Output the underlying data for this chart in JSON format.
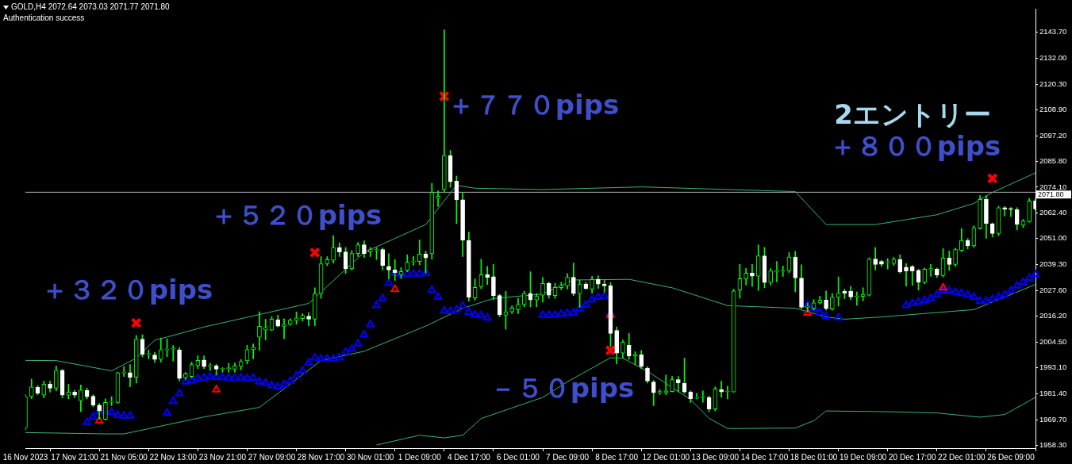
{
  "chart_data": {
    "type": "candlestick",
    "title": "GOLD,H4 2072.64 2073.03 2071.77 2071.80",
    "subtitle": "Authentication success",
    "annotations": [
      "＋３２０pips",
      "＋５２０pips",
      "＋７７０pips",
      "2エントリー",
      "＋８００pips",
      "－５０pips"
    ],
    "categories": [
      "16 Nov 2023",
      null,
      null,
      null,
      null,
      null,
      null,
      null,
      "17 Nov 21:00",
      null,
      null,
      null,
      null,
      null,
      null,
      null,
      "21 Nov 05:00",
      null,
      null,
      null,
      null,
      null,
      null,
      null,
      "22 Nov 13:00",
      null,
      null,
      null,
      null,
      null,
      null,
      null,
      "23 Nov 21:00",
      null,
      null,
      null,
      null,
      null,
      null,
      null,
      "27 Nov 09:00",
      null,
      null,
      null,
      null,
      null,
      null,
      null,
      "28 Nov 17:00",
      null,
      null,
      null,
      null,
      null,
      null,
      null,
      "30 Nov 01:00",
      null,
      null,
      null,
      null,
      null,
      null,
      null,
      "1 Dec 09:00",
      null,
      null,
      null,
      null,
      null,
      null,
      null,
      "4 Dec 17:00",
      null,
      null,
      null,
      null,
      null,
      null,
      null,
      "6 Dec 01:00",
      null,
      null,
      null,
      null,
      null,
      null,
      null,
      "7 Dec 09:00",
      null,
      null,
      null,
      null,
      null,
      null,
      null,
      "8 Dec 17:00",
      null,
      null,
      null,
      null,
      null,
      null,
      null,
      "12 Dec 01:00",
      null,
      null,
      null,
      null,
      null,
      null,
      null,
      "13 Dec 09:00",
      null,
      null,
      null,
      null,
      null,
      null,
      null,
      "14 Dec 17:00",
      null,
      null,
      null,
      null,
      null,
      null,
      null,
      "18 Dec 01:00",
      null,
      null,
      null,
      null,
      null,
      null,
      null,
      "19 Dec 09:00",
      null,
      null,
      null,
      null,
      null,
      null,
      null,
      "20 Dec 17:00",
      null,
      null,
      null,
      null,
      null,
      null,
      null,
      "22 Dec 01:00",
      null,
      null,
      null,
      null,
      null,
      null,
      null,
      "26 Dec 09:00",
      null,
      null,
      null,
      null
    ],
    "ohlc": [
      [
        1966,
        1981,
        1965,
        1980
      ],
      [
        1980.1,
        1987.9,
        1979.1,
        1984.4
      ],
      [
        1984.2,
        1985,
        1980.9,
        1981.5
      ],
      [
        1980.7,
        1987,
        1979.5,
        1985.6
      ],
      [
        1985.6,
        1987,
        1982,
        1983.8
      ],
      [
        1983.8,
        1993.8,
        1982.6,
        1991.9
      ],
      [
        1991.9,
        1992.2,
        1979.5,
        1980.7
      ],
      [
        1980.7,
        1985.6,
        1979.1,
        1982.1
      ],
      [
        1982.1,
        1983,
        1979.5,
        1980.7
      ],
      [
        1978.2,
        1985.3,
        1973.3,
        1983
      ],
      [
        1982.8,
        1983.9,
        1979,
        1980
      ],
      [
        1980.2,
        1980.9,
        1975.6,
        1976.2
      ],
      [
        1976.2,
        1977,
        1969.8,
        1973.6
      ],
      [
        1969.8,
        1979,
        1969.5,
        1977.4
      ],
      [
        1977.5,
        1980,
        1976,
        1977.8
      ],
      [
        1977.4,
        1991,
        1977,
        1990.8
      ],
      [
        1990.7,
        1993.5,
        1989,
        1991
      ],
      [
        1990.8,
        1994.4,
        1984.4,
        1988.7
      ],
      [
        1988.7,
        2007.5,
        1986.1,
        2005.8
      ],
      [
        2005.8,
        2007.8,
        1997.9,
        1999
      ],
      [
        1999,
        2001,
        1997,
        1999.3
      ],
      [
        1998.7,
        2000,
        1995.4,
        1996.7
      ],
      [
        1996.7,
        2006.4,
        1995.5,
        2001.1
      ],
      [
        2001,
        2006,
        1998,
        2001.4
      ],
      [
        2001.5,
        2003,
        1996,
        2001.8
      ],
      [
        2001,
        2002,
        1987,
        1988.2
      ],
      [
        1988.5,
        1990.9,
        1987.8,
        1990.3
      ],
      [
        1989.1,
        1995.5,
        1988.5,
        1994.4
      ],
      [
        1994,
        1998.4,
        1992.6,
        1996.3
      ],
      [
        1996.5,
        1998.4,
        1992.6,
        1993.5
      ],
      [
        1993.6,
        1995,
        1991.7,
        1993.9
      ],
      [
        1993.8,
        1994.5,
        1989.7,
        1992.4
      ],
      [
        1992.4,
        1993,
        1991,
        1992.6
      ],
      [
        1992.6,
        1995,
        1991,
        1993
      ],
      [
        1992.4,
        1995.2,
        1991,
        1993.8
      ],
      [
        1993.6,
        1996.7,
        1992,
        1995.8
      ],
      [
        1996.1,
        2003.1,
        1994.7,
        2001.1
      ],
      [
        2001.1,
        2003.7,
        1997,
        2002.2
      ],
      [
        2006.7,
        2018.1,
        2000.8,
        2011.6
      ],
      [
        2009.9,
        2014.8,
        2005.5,
        2011.1
      ],
      [
        2009.9,
        2016,
        2009.6,
        2014.8
      ],
      [
        2014.6,
        2016.6,
        2011.3,
        2011.7
      ],
      [
        2011.6,
        2015,
        2006,
        2012.5
      ],
      [
        2012.5,
        2015,
        2012,
        2014.4
      ],
      [
        2014.2,
        2018.1,
        2012.5,
        2015.4
      ],
      [
        2015.1,
        2017.3,
        2013.9,
        2016.5
      ],
      [
        2016.2,
        2017.8,
        2011.9,
        2014.8
      ],
      [
        2014.8,
        2028.9,
        2011.9,
        2026.3
      ],
      [
        2026.3,
        2042.9,
        2024.2,
        2039.7
      ],
      [
        2039.7,
        2042.9,
        2038.8,
        2041.5
      ],
      [
        2041.2,
        2052.3,
        2040,
        2047
      ],
      [
        2047,
        2049,
        2042.9,
        2045
      ],
      [
        2045,
        2047,
        2035.3,
        2037.4
      ],
      [
        2037.4,
        2045.6,
        2036.8,
        2044.3
      ],
      [
        2044.3,
        2049.3,
        2042.9,
        2048.2
      ],
      [
        2048.2,
        2050,
        2042.5,
        2044.3
      ],
      [
        2045,
        2047,
        2042.9,
        2046.1
      ],
      [
        2045.8,
        2046.9,
        2041.6,
        2046.2
      ],
      [
        2046.1,
        2046.8,
        2036.9,
        2038.9
      ],
      [
        2038.5,
        2044.2,
        2032.9,
        2036.9
      ],
      [
        2036.9,
        2041.6,
        2032.2,
        2035.7
      ],
      [
        2034.8,
        2038,
        2033,
        2036.2
      ],
      [
        2036.7,
        2043.7,
        2036.1,
        2040.4
      ],
      [
        2040.5,
        2043,
        2039,
        2040.9
      ],
      [
        2040.7,
        2050.4,
        2039.2,
        2044
      ],
      [
        2044,
        2045.4,
        2035.4,
        2042.3
      ],
      [
        2044.2,
        2075.8,
        2041.7,
        2071.7
      ],
      [
        2069,
        2072.4,
        2065.4,
        2070
      ],
      [
        2073,
        2144.7,
        2071.7,
        2088.3
      ],
      [
        2088.3,
        2090.6,
        2074,
        2076.5
      ],
      [
        2076.8,
        2079.1,
        2057.7,
        2068.4
      ],
      [
        2068.4,
        2071.7,
        2042.9,
        2050.2
      ],
      [
        2050.2,
        2053.9,
        2022.9,
        2024.7
      ],
      [
        2024.3,
        2032.9,
        2023.4,
        2029.1
      ],
      [
        2029.4,
        2041.7,
        2028.5,
        2034.8
      ],
      [
        2034.8,
        2038.5,
        2030.4,
        2033.5
      ],
      [
        2033.9,
        2039.4,
        2023.4,
        2025.4
      ],
      [
        2025.4,
        2026,
        2015.9,
        2016.8
      ],
      [
        2016.6,
        2027.3,
        2010.3,
        2018.1
      ],
      [
        2018.1,
        2020.8,
        2017.3,
        2019.8
      ],
      [
        2019.1,
        2024.2,
        2017.3,
        2021.4
      ],
      [
        2021.4,
        2027.3,
        2020.3,
        2026.4
      ],
      [
        2026.4,
        2036.1,
        2020.3,
        2023.4
      ],
      [
        2023.4,
        2026.4,
        2020.3,
        2025.1
      ],
      [
        2025.6,
        2033.6,
        2022.5,
        2030.9
      ],
      [
        2030.9,
        2031.4,
        2024.2,
        2025.6
      ],
      [
        2025.4,
        2031,
        2024.2,
        2029.1
      ],
      [
        2029,
        2031.4,
        2028,
        2030
      ],
      [
        2029.8,
        2035.3,
        2028.3,
        2033.6
      ],
      [
        2033.6,
        2040,
        2025.4,
        2026.3
      ],
      [
        2026.3,
        2032.4,
        2020.1,
        2030.6
      ],
      [
        2030.6,
        2031.5,
        2028.2,
        2028.6
      ],
      [
        2028.3,
        2034.1,
        2026.5,
        2032.6
      ],
      [
        2032.6,
        2034.3,
        2028.6,
        2030.6
      ],
      [
        2030.6,
        2032.4,
        2026.9,
        2029.8
      ],
      [
        2029.8,
        2031.2,
        2002.5,
        2008.4
      ],
      [
        2009.8,
        2011.3,
        1994.7,
        1999.6
      ],
      [
        1999.6,
        2005.4,
        1997.3,
        2004.5
      ],
      [
        2003.1,
        2008.4,
        1996.7,
        1998.2
      ],
      [
        1998.2,
        2000.2,
        1994.4,
        1999
      ],
      [
        1998.9,
        2000.8,
        1992.6,
        1993.5
      ],
      [
        1992.8,
        1993.5,
        1986.1,
        1987
      ],
      [
        1986.6,
        1987.3,
        1976,
        1981.8
      ],
      [
        1981.8,
        1983.2,
        1981,
        1982.3
      ],
      [
        1981.8,
        1989.7,
        1980.9,
        1982.6
      ],
      [
        1982.3,
        1989.1,
        1982.1,
        1987.7
      ],
      [
        1987.7,
        1989.1,
        1982.1,
        1986.1
      ],
      [
        1986.1,
        1997.3,
        1981.5,
        1982.1
      ],
      [
        1982.1,
        1982.6,
        1977.4,
        1979.1
      ],
      [
        1979.3,
        1981.5,
        1979,
        1979.6
      ],
      [
        1979.6,
        1982.6,
        1977.5,
        1979.8
      ],
      [
        1979.7,
        1980.3,
        1973.3,
        1974.5
      ],
      [
        1974.5,
        1984.4,
        1973.6,
        1983.5
      ],
      [
        1983.2,
        1987,
        1979.7,
        1982.1
      ],
      [
        1982.2,
        1984.7,
        1979,
        1982.5
      ],
      [
        1982.1,
        2028.3,
        1982,
        2027.5
      ],
      [
        2027.9,
        2039.4,
        2024.2,
        2033
      ],
      [
        2033,
        2037.7,
        2030.1,
        2035.5
      ],
      [
        2035.5,
        2039.4,
        2029.5,
        2034.1
      ],
      [
        2034.1,
        2048.2,
        2027.7,
        2043.2
      ],
      [
        2043.2,
        2047,
        2028.9,
        2031.3
      ],
      [
        2031.3,
        2037.6,
        2030.1,
        2036.5
      ],
      [
        2036.2,
        2040.7,
        2031.5,
        2036.5
      ],
      [
        2036.4,
        2038.7,
        2034,
        2036.7
      ],
      [
        2036.5,
        2044.7,
        2035.7,
        2042.7
      ],
      [
        2042.7,
        2045.3,
        2027.1,
        2033.3
      ],
      [
        2033.3,
        2039.2,
        2019.5,
        2020.1
      ],
      [
        2020.1,
        2022,
        2018,
        2020.7
      ],
      [
        2019.7,
        2023.6,
        2018.9,
        2022.1
      ],
      [
        2022.1,
        2025.1,
        2021.6,
        2023.4
      ],
      [
        2023.4,
        2027.5,
        2018.9,
        2019.5
      ],
      [
        2019.3,
        2026.3,
        2018.9,
        2024.6
      ],
      [
        2024.6,
        2033.8,
        2020.7,
        2026.5
      ],
      [
        2027.4,
        2028.3,
        2024,
        2026.5
      ],
      [
        2027.4,
        2029.5,
        2023.4,
        2024.8
      ],
      [
        2024.8,
        2027,
        2021,
        2025.1
      ],
      [
        2025,
        2028.9,
        2023,
        2026
      ],
      [
        2025.6,
        2042.3,
        2025.2,
        2041.8
      ],
      [
        2041.8,
        2047,
        2036.9,
        2039.4
      ],
      [
        2040.7,
        2041.3,
        2038.5,
        2039.5
      ],
      [
        2040.3,
        2042,
        2037.3,
        2040.6
      ],
      [
        2039.8,
        2042.6,
        2038.9,
        2041.7
      ],
      [
        2041.5,
        2043.7,
        2035.4,
        2036.1
      ],
      [
        2038.2,
        2039.8,
        2029.7,
        2036.4
      ],
      [
        2038.4,
        2039,
        2030,
        2036.4
      ],
      [
        2036.7,
        2037.3,
        2027.9,
        2031.4
      ],
      [
        2031.4,
        2037.8,
        2030.7,
        2037.3
      ],
      [
        2037,
        2039.5,
        2034,
        2037.5
      ],
      [
        2037.3,
        2037.8,
        2033.5,
        2034.7
      ],
      [
        2034.4,
        2046.5,
        2033.8,
        2042.3
      ],
      [
        2042.3,
        2045.4,
        2036.7,
        2039.4
      ],
      [
        2039.4,
        2046.7,
        2038.5,
        2046.1
      ],
      [
        2045.7,
        2055.5,
        2045.2,
        2050.2
      ],
      [
        2050.2,
        2051,
        2046.3,
        2047.7
      ],
      [
        2047.7,
        2056.7,
        2047,
        2055.7
      ],
      [
        2055.7,
        2070.3,
        2055.2,
        2068.6
      ],
      [
        2068.6,
        2070.3,
        2051.1,
        2057.7
      ],
      [
        2057.7,
        2058,
        2051.7,
        2053.3
      ],
      [
        2053.3,
        2065.5,
        2052.3,
        2064.9
      ],
      [
        2064.9,
        2065.4,
        2061.1,
        2064.2
      ],
      [
        2064.5,
        2065,
        2060.8,
        2064
      ],
      [
        2064,
        2064.9,
        2054.9,
        2057.4
      ],
      [
        2057,
        2059.6,
        2055.9,
        2058.9
      ],
      [
        2058.6,
        2069,
        2058.3,
        2067.9
      ],
      [
        2067.9,
        2069.2,
        2063.6,
        2064.3
      ]
    ],
    "series": [
      {
        "type": "line",
        "color": "#3cb371",
        "values": [
          1996.3,
          null,
          null,
          null,
          null,
          1996.2,
          null,
          null,
          null,
          null,
          null,
          null,
          null,
          null,
          1991.6,
          null,
          null,
          null,
          1997.3,
          null,
          null,
          2005.4,
          null,
          2006.8,
          null,
          null,
          null,
          null,
          null,
          2011.3,
          null,
          null,
          null,
          null,
          null,
          null,
          null,
          null,
          2016.9,
          null,
          null,
          null,
          null,
          null,
          null,
          null,
          2021.9,
          null,
          null,
          null,
          null,
          null,
          null,
          null,
          null,
          2044.8,
          null,
          null,
          null,
          null,
          null,
          null,
          null,
          null,
          null,
          2057.3,
          null,
          null,
          2068,
          null,
          2074.9,
          null,
          null,
          2073.6,
          null,
          null,
          null,
          null,
          null,
          null,
          null,
          null,
          null,
          null,
          2073,
          null,
          null,
          null,
          null,
          null,
          null,
          null,
          null,
          null,
          null,
          null,
          null,
          null,
          null,
          null,
          2074.2,
          null,
          null,
          null,
          null,
          null,
          null,
          null,
          null,
          null,
          null,
          null,
          null,
          null,
          null,
          null,
          null,
          null,
          null,
          null,
          null,
          null,
          null,
          null,
          null,
          2072.1,
          null,
          null,
          null,
          null,
          2057.3,
          null,
          null,
          null,
          null,
          null,
          null,
          null,
          2057.3,
          null,
          null,
          null,
          null,
          null,
          null,
          null,
          null,
          null,
          2061.7,
          null,
          null,
          null,
          null,
          null,
          2066.8,
          null,
          null,
          2071.7,
          null,
          null,
          null,
          null,
          null,
          null,
          2080.5
        ]
      },
      {
        "type": "line",
        "color": "#3cb371",
        "values": [
          1963.9,
          null,
          null,
          null,
          null,
          null,
          null,
          null,
          null,
          null,
          null,
          null,
          null,
          1963.3,
          null,
          null,
          1963.3,
          null,
          null,
          null,
          null,
          null,
          null,
          null,
          null,
          null,
          null,
          null,
          null,
          1970.9,
          null,
          null,
          null,
          null,
          null,
          null,
          null,
          null,
          1975.2,
          null,
          null,
          null,
          null,
          null,
          null,
          null,
          null,
          null,
          1996.2,
          null,
          null,
          null,
          null,
          null,
          null,
          2000.4,
          null,
          null,
          null,
          null,
          null,
          null,
          null,
          null,
          null,
          2011.7,
          null,
          null,
          null,
          null,
          null,
          2019.7,
          null,
          null,
          null,
          null,
          2024.1,
          null,
          null,
          null,
          null,
          null,
          null,
          null,
          2026.1,
          null,
          null,
          null,
          null,
          2032.4,
          null,
          null,
          null,
          null,
          null,
          null,
          null,
          null,
          2032.7,
          null,
          null,
          null,
          null,
          null,
          null,
          2028.9,
          null,
          null,
          null,
          null,
          null,
          2023.6,
          null,
          null,
          2020.9,
          null,
          null,
          null,
          null,
          null,
          null,
          null,
          null,
          null,
          null,
          2019.7,
          null,
          null,
          null,
          null,
          2015.8,
          null,
          null,
          2014.8,
          null,
          null,
          null,
          null,
          null,
          2015.8,
          null,
          null,
          null,
          null,
          null,
          null,
          null,
          null,
          null,
          null,
          null,
          null,
          null,
          null,
          2019.1,
          null,
          null,
          null,
          null,
          null,
          null,
          null,
          null,
          null,
          2030.4
        ]
      },
      {
        "type": "line",
        "color": "#3cb371",
        "values": [
          null,
          null,
          null,
          null,
          null,
          null,
          null,
          null,
          null,
          null,
          null,
          null,
          null,
          null,
          null,
          null,
          null,
          null,
          null,
          null,
          null,
          null,
          null,
          null,
          null,
          null,
          null,
          null,
          null,
          null,
          null,
          null,
          null,
          null,
          null,
          null,
          null,
          null,
          null,
          null,
          null,
          null,
          null,
          null,
          null,
          null,
          null,
          null,
          null,
          null,
          null,
          null,
          null,
          null,
          null,
          null,
          null,
          1958.3,
          null,
          null,
          null,
          null,
          null,
          null,
          1962.7,
          null,
          null,
          null,
          1961.5,
          null,
          null,
          1962.7,
          null,
          null,
          1970.2,
          null,
          null,
          null,
          null,
          null,
          null,
          null,
          null,
          null,
          1979.7,
          null,
          null,
          null,
          1986.7,
          null,
          null,
          null,
          null,
          null,
          null,
          1997.5,
          null,
          1997.3,
          null,
          null,
          null,
          1991.4,
          null,
          null,
          null,
          null,
          null,
          null,
          1978.7,
          null,
          null,
          1970.3,
          null,
          null,
          1965.7,
          null,
          null,
          null,
          null,
          null,
          null,
          null,
          null,
          null,
          null,
          1965.9,
          null,
          null,
          1969.2,
          null,
          1973.6,
          null,
          null,
          null,
          null,
          null,
          null,
          null,
          null,
          1973.3,
          null,
          null,
          null,
          null,
          null,
          null,
          null,
          null,
          1972.7,
          null,
          null,
          null,
          null,
          null,
          null,
          1970.8,
          null,
          null,
          null,
          1972,
          null,
          null,
          null,
          null,
          1979.7
        ]
      },
      {
        "type": "scatter",
        "color": "#0000ff",
        "marker": "triangle",
        "values": [
          null,
          null,
          null,
          null,
          null,
          null,
          null,
          null,
          null,
          null,
          1968.6,
          1970.9,
          1973.4,
          1973.4,
          1973,
          1971.7,
          1971.4,
          1971.4,
          null,
          null,
          null,
          null,
          null,
          1972.7,
          1978,
          1981.5,
          1986.7,
          1987.3,
          1988.2,
          1988.5,
          1989,
          1988.8,
          1988.6,
          1988.5,
          1988.3,
          1988.5,
          1988.2,
          1988.4,
          1986.7,
          1986.1,
          1985,
          1984.4,
          1985.5,
          1987,
          1989.4,
          1991.6,
          1995.3,
          1997.5,
          1997,
          1997,
          1997,
          1997.5,
          2000,
          2001.4,
          2003.8,
          2007.8,
          2012.5,
          2021,
          2024.1,
          2031,
          2035.4,
          2035.2,
          2035.2,
          2035.2,
          2035.2,
          2035.4,
          2027.9,
          2024.7,
          2018.5,
          2018.3,
          2019,
          2020.8,
          2018,
          2016.7,
          2016.5,
          2015.4,
          null,
          null,
          null,
          null,
          null,
          null,
          null,
          null,
          2016.6,
          2016.6,
          2016.6,
          2017.2,
          2017.4,
          2017.8,
          2019.5,
          2021.3,
          2023.6,
          2024.7,
          2025.2,
          2017.4,
          null,
          null,
          null,
          null,
          null,
          null,
          null,
          null,
          null,
          null,
          null,
          null,
          null,
          null,
          null,
          null,
          null,
          null,
          null,
          null,
          null,
          null,
          null,
          null,
          null,
          null,
          null,
          null,
          null,
          null,
          null,
          2021.3,
          2019.5,
          2017.8,
          2016.1,
          null,
          2015.5,
          null,
          null,
          null,
          null,
          null,
          null,
          null,
          null,
          null,
          null,
          2021,
          2021.9,
          2022.5,
          2023.2,
          2024.1,
          2025.7,
          2027.6,
          2027.6,
          2027,
          2026.4,
          2025.7,
          2024.7,
          2022.9,
          2022.9,
          2023.8,
          2024.7,
          2025.7,
          2027.6,
          2029.8,
          2031.4,
          2033.3,
          2034.9
        ]
      },
      {
        "type": "scatter",
        "color": "#ff0000",
        "marker": "triangle",
        "values": [
          null,
          null,
          null,
          null,
          null,
          null,
          null,
          null,
          null,
          null,
          null,
          null,
          1969.2,
          null,
          null,
          null,
          null,
          null,
          null,
          null,
          null,
          null,
          null,
          null,
          null,
          null,
          null,
          null,
          null,
          null,
          null,
          1983.2,
          null,
          null,
          null,
          null,
          null,
          null,
          null,
          null,
          null,
          null,
          null,
          null,
          null,
          null,
          null,
          null,
          null,
          null,
          null,
          null,
          null,
          null,
          null,
          null,
          null,
          null,
          null,
          null,
          2028.2,
          null,
          null,
          null,
          null,
          null,
          null,
          null,
          null,
          null,
          null,
          null,
          null,
          null,
          null,
          null,
          null,
          null,
          null,
          null,
          null,
          null,
          null,
          null,
          null,
          null,
          null,
          null,
          null,
          null,
          null,
          null,
          null,
          null,
          null,
          2016.6,
          null,
          null,
          null,
          null,
          null,
          null,
          null,
          null,
          null,
          null,
          null,
          null,
          null,
          null,
          null,
          null,
          null,
          null,
          null,
          null,
          null,
          null,
          null,
          null,
          null,
          null,
          null,
          null,
          null,
          null,
          null,
          2017.6,
          null,
          null,
          null,
          null,
          null,
          null,
          null,
          null,
          null,
          null,
          null,
          null,
          null,
          null,
          null,
          null,
          null,
          null,
          null,
          null,
          null,
          2028.9,
          null,
          null,
          null,
          null,
          null,
          null,
          null,
          null,
          null,
          null,
          null,
          null,
          null,
          null,
          null
        ]
      },
      {
        "type": "scatter",
        "color": "#ff0000",
        "marker": "cross",
        "values": [
          null,
          null,
          null,
          null,
          null,
          null,
          null,
          null,
          null,
          null,
          null,
          null,
          null,
          null,
          null,
          null,
          null,
          null,
          2013.1,
          null,
          null,
          null,
          null,
          null,
          null,
          null,
          null,
          null,
          null,
          null,
          null,
          null,
          null,
          null,
          null,
          null,
          null,
          null,
          null,
          null,
          null,
          null,
          null,
          null,
          null,
          null,
          null,
          2044.7,
          null,
          null,
          null,
          null,
          null,
          null,
          null,
          null,
          null,
          null,
          null,
          null,
          null,
          null,
          null,
          null,
          null,
          null,
          null,
          null,
          2114.9,
          null,
          null,
          null,
          null,
          null,
          null,
          null,
          null,
          null,
          null,
          null,
          null,
          null,
          null,
          null,
          null,
          null,
          null,
          null,
          null,
          null,
          null,
          null,
          null,
          null,
          null,
          null,
          null,
          null,
          null,
          null,
          null,
          null,
          null,
          null,
          null,
          null,
          null,
          null,
          null,
          null,
          null,
          null,
          null,
          null,
          null,
          null,
          null,
          null,
          null,
          null,
          null,
          null,
          null,
          null,
          null,
          null,
          null,
          null,
          null,
          null,
          null,
          null,
          null,
          null,
          null,
          null,
          null,
          null,
          null,
          null,
          null,
          null,
          null,
          null,
          null,
          null,
          null,
          null,
          null,
          null,
          null,
          null,
          null,
          null,
          null,
          null,
          null,
          2078,
          null,
          null,
          null,
          null,
          null,
          null,
          null
        ]
      },
      {
        "type": "scatter",
        "color": "#ff0000",
        "marker": "cross",
        "values": [
          null,
          null,
          null,
          null,
          null,
          null,
          null,
          null,
          null,
          null,
          null,
          null,
          null,
          null,
          null,
          null,
          null,
          null,
          null,
          null,
          null,
          null,
          null,
          null,
          null,
          null,
          null,
          null,
          null,
          null,
          null,
          null,
          null,
          null,
          null,
          null,
          null,
          null,
          null,
          null,
          null,
          null,
          null,
          null,
          null,
          null,
          null,
          null,
          null,
          null,
          null,
          null,
          null,
          null,
          null,
          null,
          null,
          null,
          null,
          null,
          null,
          null,
          null,
          null,
          null,
          null,
          null,
          null,
          null,
          null,
          null,
          null,
          null,
          null,
          null,
          null,
          null,
          null,
          null,
          null,
          null,
          null,
          null,
          null,
          null,
          null,
          null,
          null,
          null,
          null,
          null,
          null,
          null,
          null,
          null,
          2000.8,
          null,
          null,
          null,
          null,
          null,
          null,
          null,
          null,
          null,
          null,
          null,
          null,
          null,
          null,
          null,
          null,
          null,
          null,
          null,
          null,
          null,
          null,
          null,
          null,
          null,
          null,
          null,
          null,
          null,
          null,
          null,
          null,
          null,
          null,
          null,
          null,
          null,
          null,
          null,
          null,
          null,
          null,
          null,
          null,
          null,
          null,
          null,
          null,
          null,
          null,
          null,
          null,
          null,
          null,
          null,
          null,
          null,
          null,
          null,
          null,
          null,
          null,
          null,
          null,
          null,
          null,
          null,
          null,
          null
        ]
      }
    ],
    "ylim": [
      1956.9,
      2154.2
    ],
    "yticks": [
      {
        "value": 1958.3,
        "label": "1958.30"
      },
      {
        "value": 1969.7,
        "label": "1969.70"
      },
      {
        "value": 1981.4,
        "label": "1981.40"
      },
      {
        "value": 1993.1,
        "label": "1993.10"
      },
      {
        "value": 2004.5,
        "label": "2004.50"
      },
      {
        "value": 2016.2,
        "label": "2016.20"
      },
      {
        "value": 2027.6,
        "label": "2027.60"
      },
      {
        "value": 2039.3,
        "label": "2039.30"
      },
      {
        "value": 2051,
        "label": "2051.00"
      },
      {
        "value": 2062.4,
        "label": "2062.40"
      },
      {
        "value": 2074.1,
        "label": "2074.10"
      },
      {
        "value": 2085.8,
        "label": "2085.80"
      },
      {
        "value": 2097.2,
        "label": "2097.20"
      },
      {
        "value": 2108.9,
        "label": "2108.90"
      },
      {
        "value": 2120.3,
        "label": "2120.30"
      },
      {
        "value": 2132,
        "label": "2132.00"
      },
      {
        "value": 2143.7,
        "label": "2143.70"
      }
    ],
    "ref_lines": [
      {
        "axis": "y",
        "value": 2071.8,
        "label": "2071.80",
        "color": "#b0b0b0"
      }
    ]
  }
}
